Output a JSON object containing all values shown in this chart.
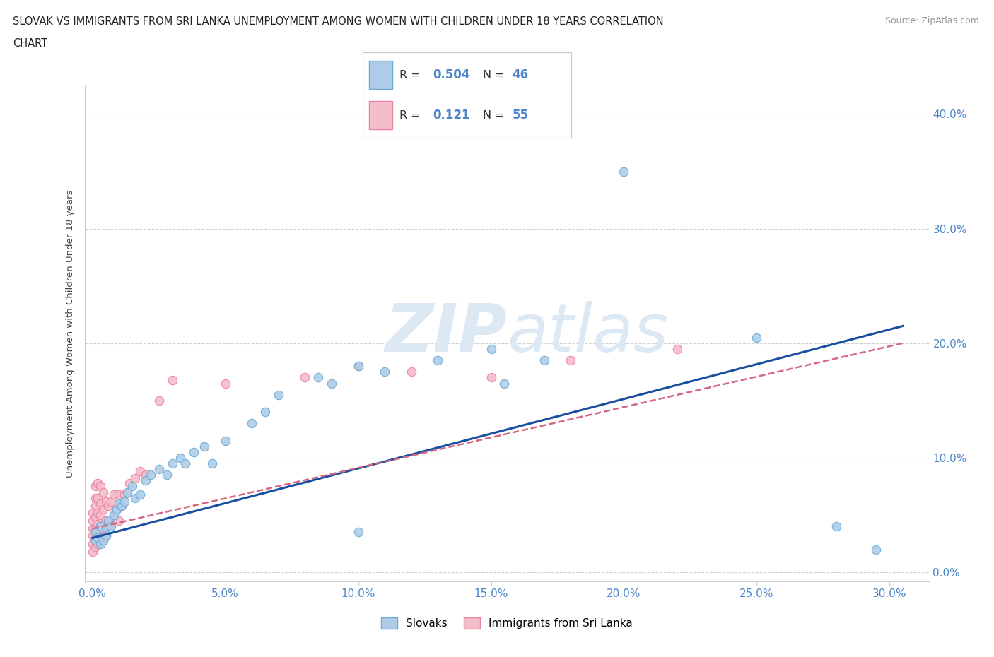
{
  "title_line1": "SLOVAK VS IMMIGRANTS FROM SRI LANKA UNEMPLOYMENT AMONG WOMEN WITH CHILDREN UNDER 18 YEARS CORRELATION",
  "title_line2": "CHART",
  "source": "Source: ZipAtlas.com",
  "xlim": [
    -0.003,
    0.315
  ],
  "ylim": [
    -0.008,
    0.425
  ],
  "slovak_color": "#aecce8",
  "slovak_edge_color": "#6aaad4",
  "srilanka_color": "#f5bccb",
  "srilanka_edge_color": "#e8829e",
  "trend_slovak_color": "#1a4fa0",
  "trend_srilanka_color": "#d46880",
  "watermark_color": "#dde8f5",
  "legend_R_slovak": "0.504",
  "legend_N_slovak": "46",
  "legend_R_srilanka": "0.121",
  "legend_N_srilanka": "55",
  "ylabel": "Unemployment Among Women with Children Under 18 years",
  "background_color": "#ffffff",
  "grid_color": "#d0d0d0",
  "tick_color": "#4a86c8",
  "slovak_x": [
    0.001,
    0.001,
    0.002,
    0.003,
    0.003,
    0.004,
    0.005,
    0.005,
    0.006,
    0.007,
    0.008,
    0.009,
    0.01,
    0.011,
    0.012,
    0.013,
    0.015,
    0.016,
    0.018,
    0.02,
    0.022,
    0.025,
    0.028,
    0.03,
    0.033,
    0.035,
    0.038,
    0.042,
    0.045,
    0.05,
    0.06,
    0.065,
    0.07,
    0.085,
    0.09,
    0.1,
    0.11,
    0.13,
    0.15,
    0.17,
    0.2,
    0.25,
    0.28,
    0.295,
    0.155,
    0.1
  ],
  "slovak_y": [
    0.028,
    0.035,
    0.03,
    0.025,
    0.04,
    0.028,
    0.038,
    0.032,
    0.045,
    0.04,
    0.05,
    0.055,
    0.06,
    0.058,
    0.062,
    0.07,
    0.075,
    0.065,
    0.068,
    0.08,
    0.085,
    0.09,
    0.085,
    0.095,
    0.1,
    0.095,
    0.105,
    0.11,
    0.095,
    0.115,
    0.13,
    0.14,
    0.155,
    0.17,
    0.165,
    0.18,
    0.175,
    0.185,
    0.195,
    0.185,
    0.35,
    0.205,
    0.04,
    0.02,
    0.165,
    0.035
  ],
  "srilanka_x": [
    0.0,
    0.0,
    0.0,
    0.0,
    0.0,
    0.0,
    0.001,
    0.001,
    0.001,
    0.001,
    0.001,
    0.001,
    0.001,
    0.002,
    0.002,
    0.002,
    0.002,
    0.002,
    0.002,
    0.003,
    0.003,
    0.003,
    0.003,
    0.003,
    0.004,
    0.004,
    0.004,
    0.004,
    0.005,
    0.005,
    0.005,
    0.006,
    0.006,
    0.007,
    0.007,
    0.008,
    0.008,
    0.009,
    0.01,
    0.01,
    0.011,
    0.012,
    0.014,
    0.016,
    0.018,
    0.02,
    0.025,
    0.03,
    0.05,
    0.08,
    0.1,
    0.12,
    0.15,
    0.18,
    0.22
  ],
  "srilanka_y": [
    0.018,
    0.025,
    0.032,
    0.038,
    0.045,
    0.052,
    0.022,
    0.03,
    0.038,
    0.048,
    0.058,
    0.065,
    0.075,
    0.025,
    0.032,
    0.042,
    0.052,
    0.065,
    0.078,
    0.03,
    0.04,
    0.05,
    0.06,
    0.075,
    0.028,
    0.038,
    0.055,
    0.07,
    0.032,
    0.045,
    0.062,
    0.04,
    0.058,
    0.045,
    0.062,
    0.048,
    0.068,
    0.055,
    0.045,
    0.068,
    0.058,
    0.068,
    0.078,
    0.082,
    0.088,
    0.085,
    0.15,
    0.168,
    0.165,
    0.17,
    0.18,
    0.175,
    0.17,
    0.185,
    0.195
  ],
  "trend_slovak_x0": 0.0,
  "trend_slovak_y0": 0.03,
  "trend_slovak_x1": 0.305,
  "trend_slovak_y1": 0.215,
  "trend_srilanka_x0": 0.0,
  "trend_srilanka_y0": 0.038,
  "trend_srilanka_x1": 0.305,
  "trend_srilanka_y1": 0.2
}
